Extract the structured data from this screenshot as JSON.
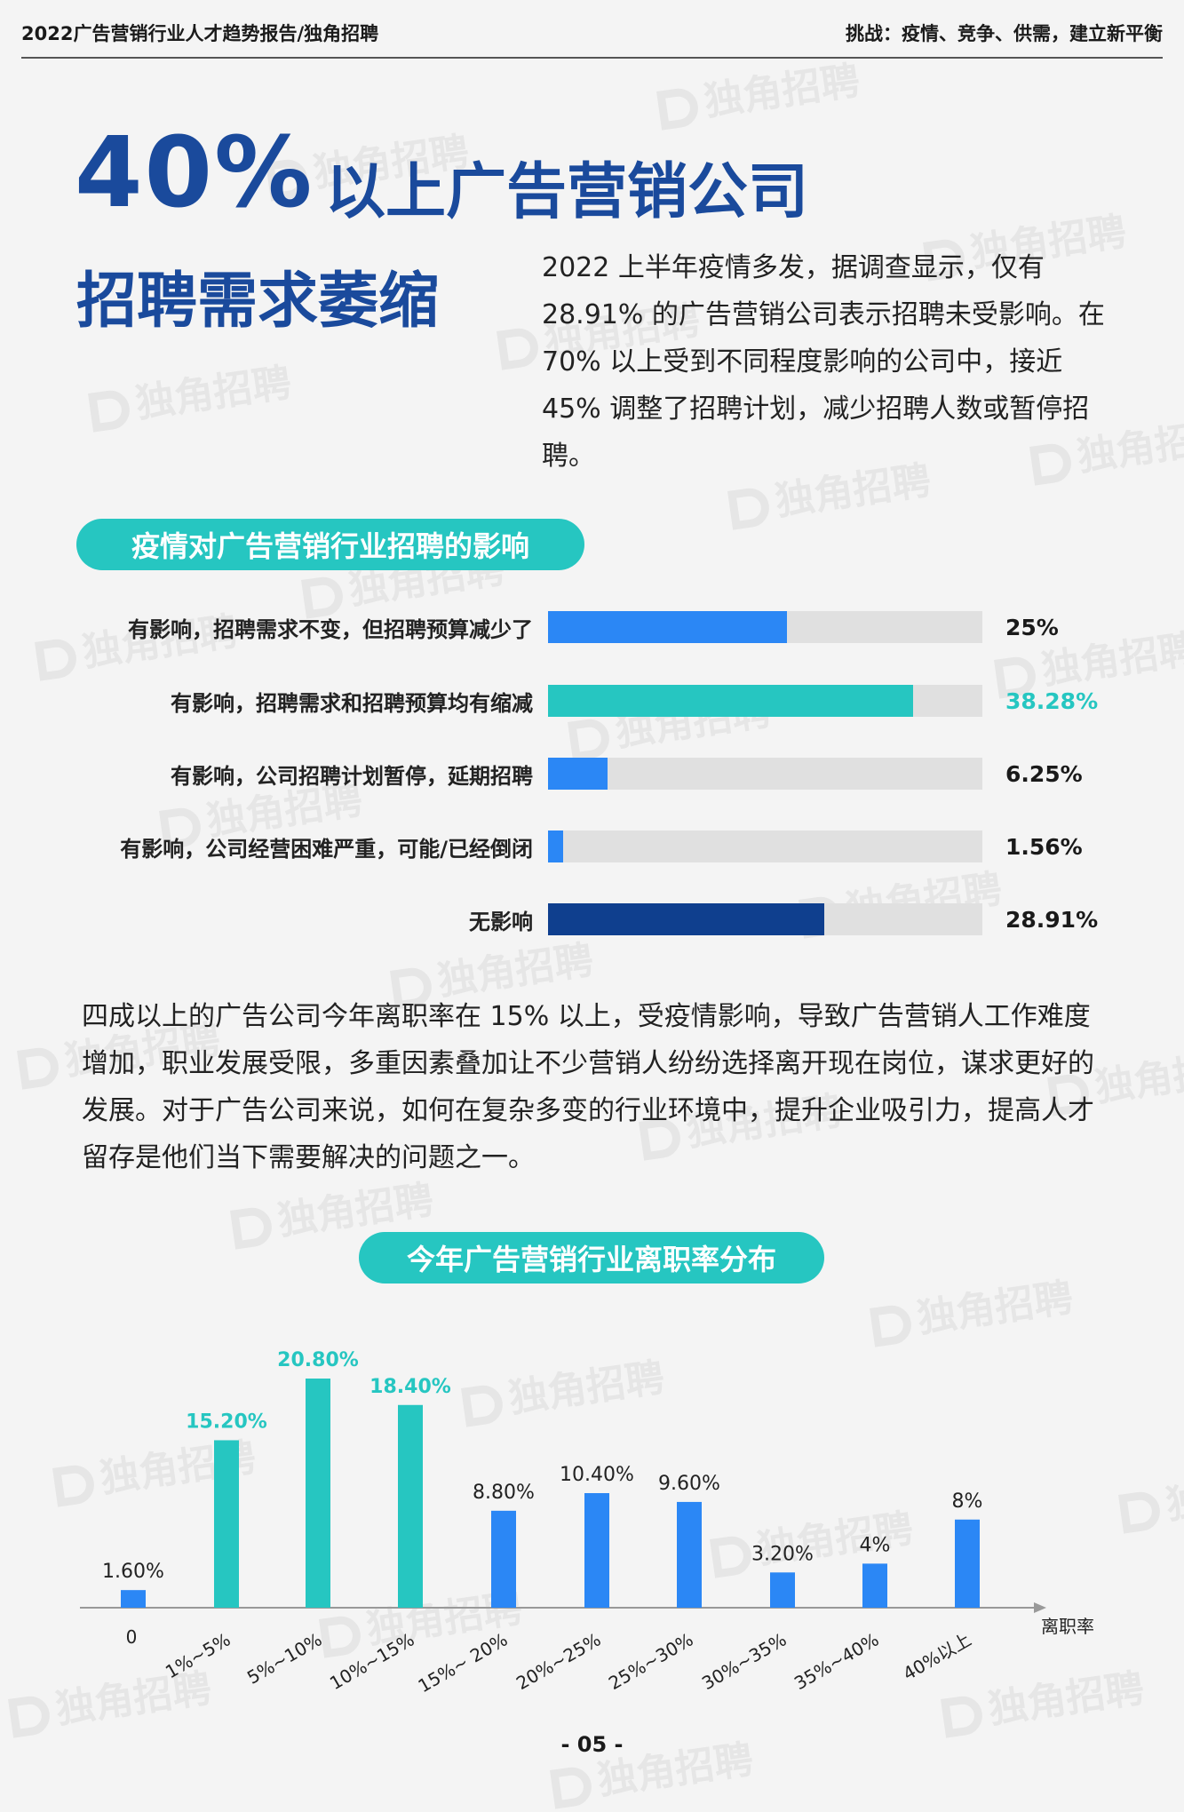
{
  "header": {
    "left": "2022广告营销行业人才趋势报告/独角招聘",
    "right": "挑战：疫情、竞争、供需，建立新平衡"
  },
  "watermark": "独角招聘",
  "hero": {
    "percent": "40%",
    "line1": "以上广告营销公司",
    "line2": "招聘需求萎缩"
  },
  "intro": "2022 上半年疫情多发，据调查显示，仅有 28.91% 的广告营销公司表示招聘未受影响。在 70% 以上受到不同程度影响的公司中，接近 45% 调整了招聘计划，减少招聘人数或暂停招聘。",
  "section1_title": "疫情对广告营销行业招聘的影响",
  "impact_bars": [
    {
      "label": "有影响，招聘需求不变，但招聘预算减少了",
      "value": 25,
      "display": "25%",
      "color": "#2b87f5",
      "value_color": "#1a1a1a"
    },
    {
      "label": "有影响，招聘需求和招聘预算均有缩减",
      "value": 38.28,
      "display": "38.28%",
      "color": "#26c6c1",
      "value_color": "#26c6c1"
    },
    {
      "label": "有影响，公司招聘计划暂停，延期招聘",
      "value": 6.25,
      "display": "6.25%",
      "color": "#2b87f5",
      "value_color": "#1a1a1a"
    },
    {
      "label": "有影响，公司经营困难严重，可能/已经倒闭",
      "value": 1.56,
      "display": "1.56%",
      "color": "#2b87f5",
      "value_color": "#1a1a1a"
    },
    {
      "label": "无影响",
      "value": 28.91,
      "display": "28.91%",
      "color": "#0f3f8e",
      "value_color": "#1a1a1a"
    }
  ],
  "para2": "四成以上的广告公司今年离职率在 15% 以上，受疫情影响，导致广告营销人工作难度增加，职业发展受限，多重因素叠加让不少营销人纷纷选择离开现在岗位，谋求更好的发展。对于广告公司来说，如何在复杂多变的行业环境中，提升企业吸引力，提高人才留存是他们当下需要解决的问题之一。",
  "section2_title": "今年广告营销行业离职率分布",
  "chart_data": {
    "type": "bar",
    "categories": [
      "0",
      "1%~5%",
      "5%~10%",
      "10%~15%",
      "15%~ 20%",
      "20%~25%",
      "25%~30%",
      "30%~35%",
      "35%~40%",
      "40%以上"
    ],
    "values": [
      1.6,
      15.2,
      20.8,
      18.4,
      8.8,
      10.4,
      9.6,
      3.2,
      4,
      8
    ],
    "value_labels": [
      "1.60%",
      "15.20%",
      "20.80%",
      "18.40%",
      "8.80%",
      "10.40%",
      "9.60%",
      "3.20%",
      "4%",
      "8%"
    ],
    "highlight": [
      false,
      true,
      true,
      true,
      false,
      false,
      false,
      false,
      false,
      false
    ],
    "colors": {
      "normal": "#2b87f5",
      "highlight": "#26c6c1"
    },
    "xlabel": "离职率",
    "ylabel": "",
    "ylim": [
      0,
      22
    ]
  },
  "page_number": "- 05 -"
}
